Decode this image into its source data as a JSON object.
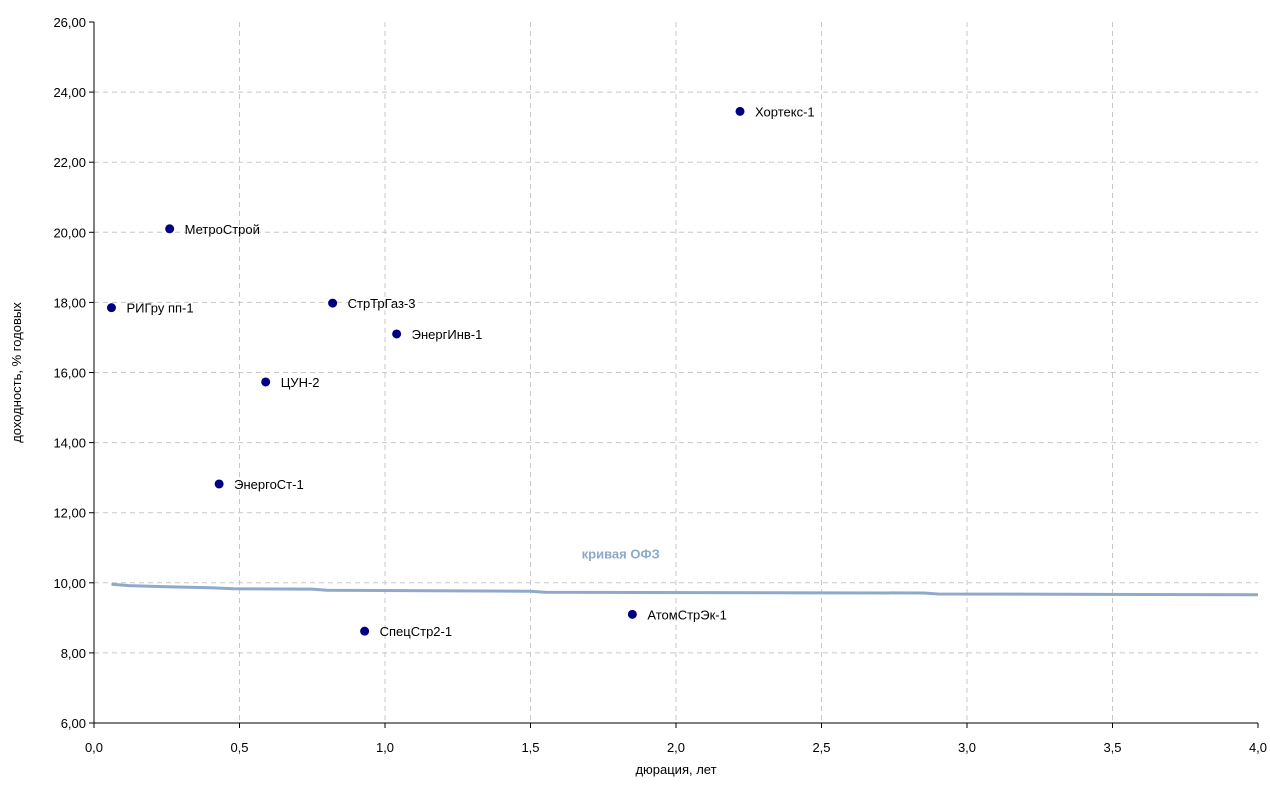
{
  "chart_data": {
    "type": "scatter",
    "title": "",
    "xlabel": "дюрация, лет",
    "ylabel": "доходность, % годовых",
    "xlim": [
      0,
      4
    ],
    "ylim": [
      6,
      26
    ],
    "x_ticks": [
      {
        "value": 0.0,
        "label": "0,0"
      },
      {
        "value": 0.5,
        "label": "0,5"
      },
      {
        "value": 1.0,
        "label": "1,0"
      },
      {
        "value": 1.5,
        "label": "1,5"
      },
      {
        "value": 2.0,
        "label": "2,0"
      },
      {
        "value": 2.5,
        "label": "2,5"
      },
      {
        "value": 3.0,
        "label": "3,0"
      },
      {
        "value": 3.5,
        "label": "3,5"
      },
      {
        "value": 4.0,
        "label": "4,0"
      }
    ],
    "y_ticks": [
      {
        "value": 6,
        "label": "6,00"
      },
      {
        "value": 8,
        "label": "8,00"
      },
      {
        "value": 10,
        "label": "10,00"
      },
      {
        "value": 12,
        "label": "12,00"
      },
      {
        "value": 14,
        "label": "14,00"
      },
      {
        "value": 16,
        "label": "16,00"
      },
      {
        "value": 18,
        "label": "18,00"
      },
      {
        "value": 20,
        "label": "20,00"
      },
      {
        "value": 22,
        "label": "22,00"
      },
      {
        "value": 24,
        "label": "24,00"
      },
      {
        "value": 26,
        "label": "26,00"
      }
    ],
    "grid": true,
    "points": [
      {
        "label": "Хортекс-1",
        "x": 2.22,
        "y": 23.45
      },
      {
        "label": "МетроСтрой",
        "x": 0.26,
        "y": 20.1
      },
      {
        "label": "РИГру пп-1",
        "x": 0.06,
        "y": 17.85
      },
      {
        "label": "СтрТрГаз-3",
        "x": 0.82,
        "y": 17.98
      },
      {
        "label": "ЭнергИнв-1",
        "x": 1.04,
        "y": 17.1
      },
      {
        "label": "ЦУН-2",
        "x": 0.59,
        "y": 15.73
      },
      {
        "label": "ЭнергоСт-1",
        "x": 0.43,
        "y": 12.82
      },
      {
        "label": "СпецСтр2-1",
        "x": 0.93,
        "y": 8.62
      },
      {
        "label": "АтомСтрЭк-1",
        "x": 1.85,
        "y": 9.1
      }
    ],
    "curve": {
      "name": "кривая ОФЗ",
      "points": [
        [
          0.06,
          9.96
        ],
        [
          0.12,
          9.92
        ],
        [
          0.25,
          9.89
        ],
        [
          0.4,
          9.86
        ],
        [
          0.48,
          9.83
        ],
        [
          0.75,
          9.82
        ],
        [
          0.8,
          9.79
        ],
        [
          1.5,
          9.76
        ],
        [
          1.55,
          9.73
        ],
        [
          2.85,
          9.71
        ],
        [
          2.9,
          9.68
        ],
        [
          4.0,
          9.66
        ]
      ]
    },
    "colors": {
      "points": "#000080",
      "curve": "#8eaacb",
      "curve_label": "#8eaacb",
      "grid": "#c8c8c8",
      "axis": "#000000"
    }
  }
}
